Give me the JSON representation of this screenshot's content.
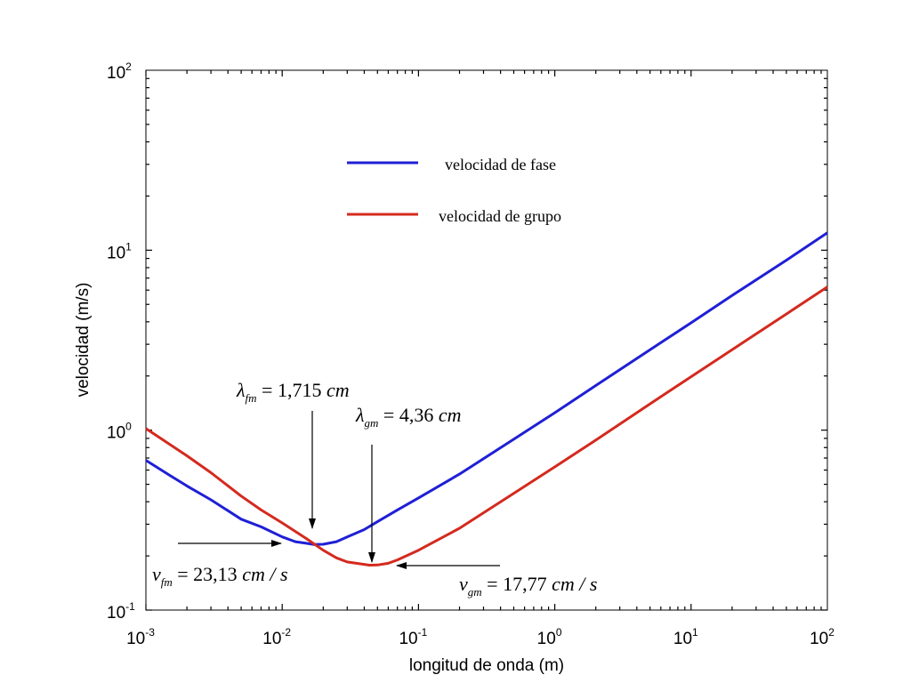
{
  "chart_data": {
    "type": "line",
    "x_scale": "log",
    "y_scale": "log",
    "xlim": [
      0.001,
      100
    ],
    "ylim": [
      0.1,
      100
    ],
    "xlabel": "longitud de onda (m)",
    "ylabel": "velocidad (m/s)",
    "x_ticks": [
      {
        "base": "10",
        "exp": "-3",
        "value": 0.001
      },
      {
        "base": "10",
        "exp": "-2",
        "value": 0.01
      },
      {
        "base": "10",
        "exp": "-1",
        "value": 0.1
      },
      {
        "base": "10",
        "exp": "0",
        "value": 1
      },
      {
        "base": "10",
        "exp": "1",
        "value": 10
      },
      {
        "base": "10",
        "exp": "2",
        "value": 100
      }
    ],
    "y_ticks": [
      {
        "base": "10",
        "exp": "-1",
        "value": 0.1
      },
      {
        "base": "10",
        "exp": "0",
        "value": 1
      },
      {
        "base": "10",
        "exp": "1",
        "value": 10
      },
      {
        "base": "10",
        "exp": "2",
        "value": 100
      }
    ],
    "grid": false,
    "legend_position": "top-center",
    "series": [
      {
        "name": "velocidad de fase",
        "color": "#1f1fd6",
        "points": [
          [
            0.001,
            0.68
          ],
          [
            0.0015,
            0.56
          ],
          [
            0.002,
            0.49
          ],
          [
            0.003,
            0.41
          ],
          [
            0.005,
            0.32
          ],
          [
            0.007,
            0.29
          ],
          [
            0.01,
            0.255
          ],
          [
            0.0125,
            0.24
          ],
          [
            0.015,
            0.235
          ],
          [
            0.01715,
            0.2313
          ],
          [
            0.02,
            0.232
          ],
          [
            0.025,
            0.24
          ],
          [
            0.03,
            0.255
          ],
          [
            0.04,
            0.28
          ],
          [
            0.05,
            0.31
          ],
          [
            0.07,
            0.36
          ],
          [
            0.1,
            0.42
          ],
          [
            0.2,
            0.57
          ],
          [
            0.5,
            0.89
          ],
          [
            1,
            1.25
          ],
          [
            2,
            1.77
          ],
          [
            5,
            2.8
          ],
          [
            10,
            3.95
          ],
          [
            20,
            5.6
          ],
          [
            50,
            8.8
          ],
          [
            100,
            12.5
          ]
        ]
      },
      {
        "name": "velocidad de grupo",
        "color": "#d42a1e",
        "points": [
          [
            0.001,
            1.02
          ],
          [
            0.002,
            0.72
          ],
          [
            0.003,
            0.58
          ],
          [
            0.005,
            0.43
          ],
          [
            0.007,
            0.36
          ],
          [
            0.01,
            0.305
          ],
          [
            0.015,
            0.25
          ],
          [
            0.02,
            0.215
          ],
          [
            0.025,
            0.195
          ],
          [
            0.03,
            0.185
          ],
          [
            0.0436,
            0.1777
          ],
          [
            0.05,
            0.178
          ],
          [
            0.06,
            0.182
          ],
          [
            0.07,
            0.19
          ],
          [
            0.1,
            0.215
          ],
          [
            0.2,
            0.285
          ],
          [
            0.5,
            0.445
          ],
          [
            1,
            0.625
          ],
          [
            2,
            0.88
          ],
          [
            5,
            1.4
          ],
          [
            10,
            1.98
          ],
          [
            20,
            2.8
          ],
          [
            50,
            4.42
          ],
          [
            100,
            6.25
          ]
        ]
      }
    ],
    "annotations": [
      {
        "id": "lambda-fm",
        "symbol": "λ",
        "sub": "fm",
        "rest": " = 1,715 ",
        "unit": "cm",
        "target": [
          0.01715,
          0.2313
        ],
        "text_at": [
          0.0025,
          0.21
        ]
      },
      {
        "id": "lambda-gm",
        "symbol": "λ",
        "sub": "gm",
        "rest": " = 4,36 ",
        "unit": "cm",
        "target": [
          0.0436,
          0.1777
        ],
        "text_at": [
          0.0195,
          0.21
        ]
      },
      {
        "id": "v-fm",
        "symbol": "v",
        "sub": "fm",
        "rest": " = 23,13 ",
        "unit": "cm / s",
        "target": [
          0.01715,
          0.2313
        ],
        "text_at": [
          0.0011,
          0.21
        ]
      },
      {
        "id": "v-gm",
        "symbol": "v",
        "sub": "gm",
        "rest": " = 17,77 ",
        "unit": "cm / s",
        "target": [
          0.0436,
          0.1777
        ],
        "text_at": [
          0.4,
          0.21
        ]
      }
    ]
  }
}
